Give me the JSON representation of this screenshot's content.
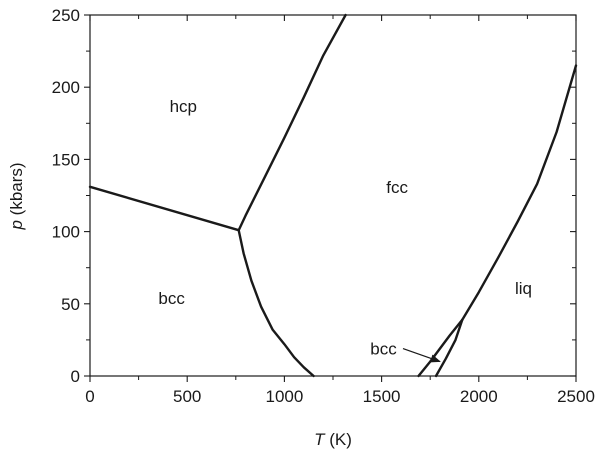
{
  "chart_data": {
    "type": "line",
    "xlabel_symbol": "T",
    "xlabel_unit": "(K)",
    "ylabel_symbol": "p",
    "ylabel_unit": "(kbars)",
    "xlim": [
      0,
      2500
    ],
    "ylim": [
      0,
      250
    ],
    "x_ticks": [
      "0",
      "500",
      "1000",
      "1500",
      "2000",
      "2500"
    ],
    "y_ticks": [
      "0",
      "50",
      "100",
      "150",
      "200",
      "250"
    ],
    "grid": false,
    "series": [
      {
        "x": [
          0,
          765
        ],
        "y": [
          131,
          101
        ]
      },
      {
        "x": [
          765,
          800,
          900,
          1000,
          1100,
          1200,
          1315
        ],
        "y": [
          101,
          111,
          138,
          165,
          193,
          222,
          250
        ]
      },
      {
        "x": [
          765,
          790,
          830,
          880,
          940,
          1000,
          1050,
          1100,
          1150
        ],
        "y": [
          101,
          85,
          66,
          48,
          32,
          22,
          13,
          6,
          0
        ]
      },
      {
        "x": [
          1690,
          1750,
          1800,
          1850,
          1915
        ],
        "y": [
          0,
          10,
          19,
          28,
          39
        ]
      },
      {
        "x": [
          1780,
          1830,
          1880,
          1915
        ],
        "y": [
          0,
          12,
          25,
          39
        ]
      },
      {
        "x": [
          1915,
          2000,
          2100,
          2200,
          2300,
          2400,
          2500
        ],
        "y": [
          39,
          58,
          82,
          107,
          133,
          169,
          215
        ]
      }
    ],
    "region_labels": [
      {
        "text": "hcp",
        "x": 480,
        "y": 187
      },
      {
        "text": "fcc",
        "x": 1580,
        "y": 131
      },
      {
        "text": "bcc",
        "x": 420,
        "y": 54
      },
      {
        "text": "liq",
        "x": 2230,
        "y": 61
      },
      {
        "text": "bcc",
        "x": 1510,
        "y": 19
      }
    ],
    "arrow_annotation": {
      "from": [
        1610,
        19
      ],
      "to": [
        1800,
        10
      ]
    }
  }
}
